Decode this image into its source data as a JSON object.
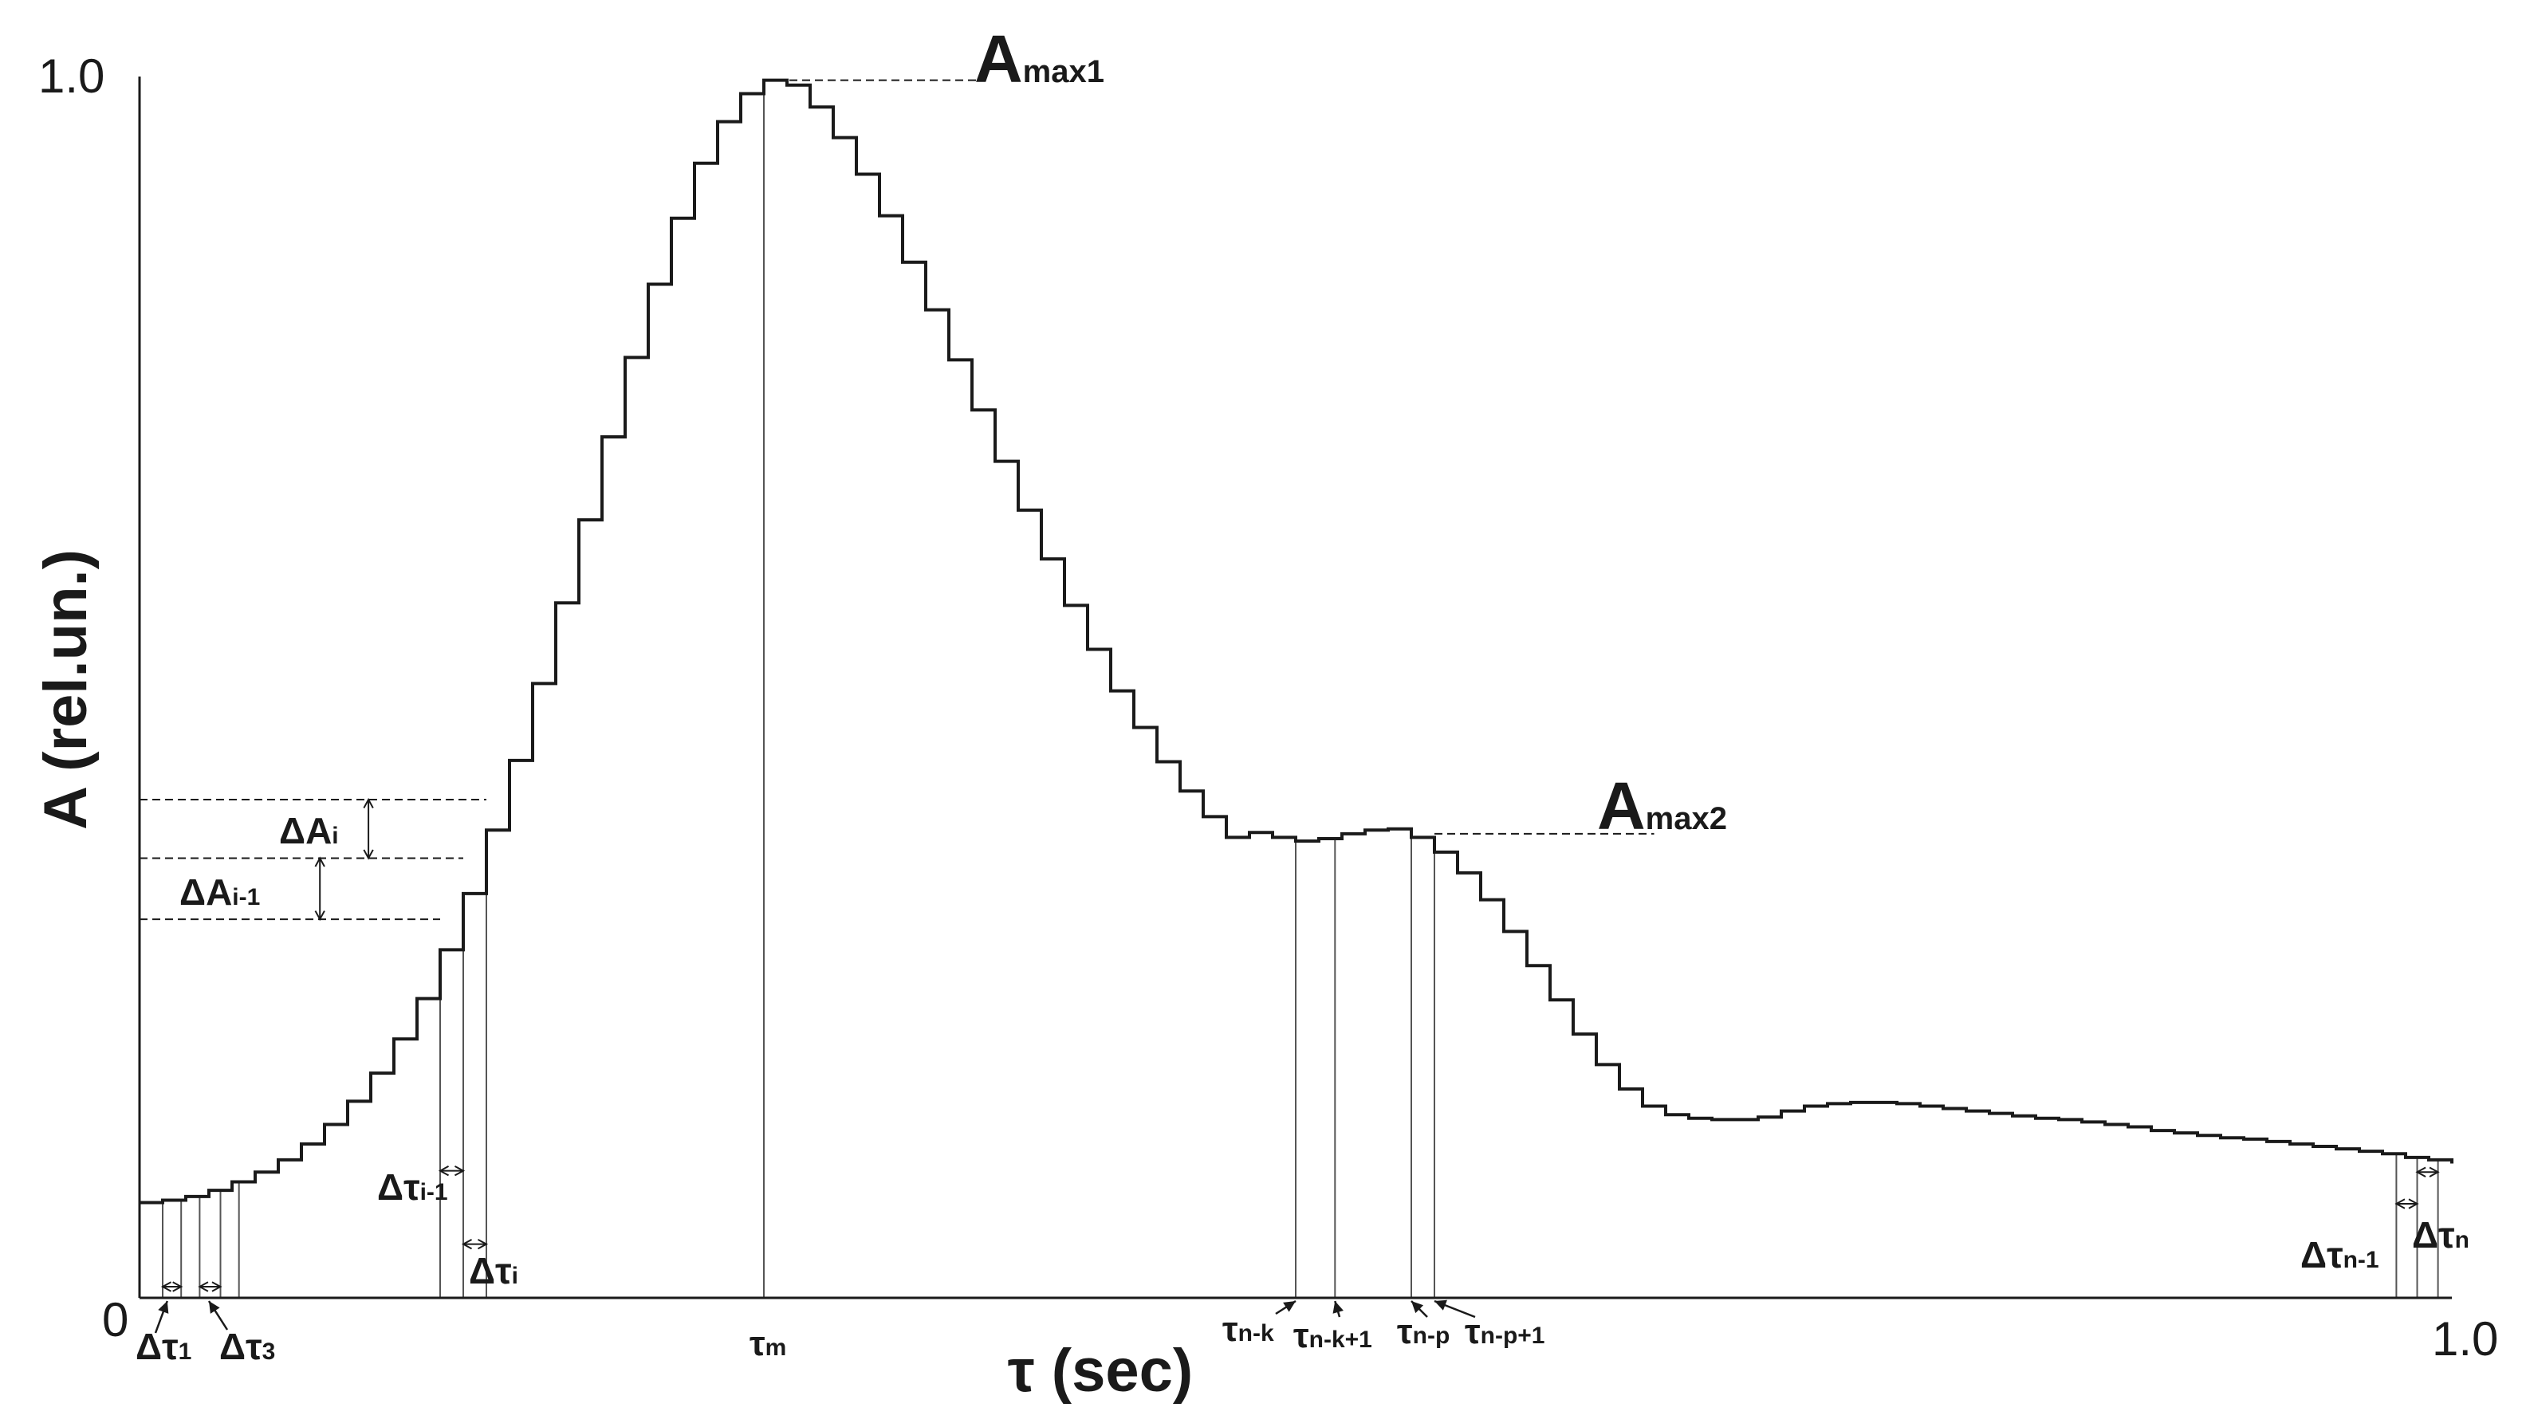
{
  "chart_data": {
    "type": "line",
    "step": true,
    "xlabel": "τ (sec)",
    "ylabel": "A (rel.un.)",
    "xlim": [
      0,
      1.0
    ],
    "ylim": [
      0,
      1.0
    ],
    "x_tick_labels": {
      "max": "1.0"
    },
    "y_tick_labels": {
      "min": "0",
      "max": "1.0"
    },
    "grid": false,
    "legend": "none",
    "colors": {
      "line": "#1a1a1a",
      "guide": "#555555"
    },
    "series": [
      {
        "x": [
          0.0,
          0.01,
          0.02,
          0.03,
          0.04,
          0.05,
          0.06,
          0.07,
          0.08,
          0.09,
          0.1,
          0.11,
          0.12,
          0.13,
          0.14,
          0.15,
          0.16,
          0.17,
          0.18,
          0.19,
          0.2,
          0.21,
          0.22,
          0.23,
          0.24,
          0.25,
          0.26,
          0.27,
          0.28,
          0.29,
          0.3,
          0.31,
          0.32,
          0.33,
          0.34,
          0.35,
          0.36,
          0.37,
          0.38,
          0.39,
          0.4,
          0.41,
          0.42,
          0.43,
          0.44,
          0.45,
          0.46,
          0.47,
          0.48,
          0.49,
          0.5,
          0.51,
          0.52,
          0.53,
          0.54,
          0.55,
          0.56,
          0.57,
          0.58,
          0.59,
          0.6,
          0.61,
          0.62,
          0.63,
          0.64,
          0.65,
          0.66,
          0.67,
          0.68,
          0.69,
          0.7,
          0.71,
          0.72,
          0.73,
          0.74,
          0.75,
          0.76,
          0.77,
          0.78,
          0.79,
          0.8,
          0.81,
          0.82,
          0.83,
          0.84,
          0.85,
          0.86,
          0.87,
          0.88,
          0.89,
          0.9,
          0.91,
          0.92,
          0.93,
          0.94,
          0.95,
          0.96,
          0.97,
          0.98,
          0.99,
          1.0
        ],
        "y": [
          0.078,
          0.08,
          0.083,
          0.088,
          0.095,
          0.103,
          0.113,
          0.126,
          0.142,
          0.161,
          0.184,
          0.212,
          0.245,
          0.285,
          0.331,
          0.383,
          0.44,
          0.503,
          0.569,
          0.637,
          0.705,
          0.77,
          0.83,
          0.884,
          0.929,
          0.963,
          0.986,
          0.997,
          0.993,
          0.975,
          0.95,
          0.92,
          0.886,
          0.848,
          0.809,
          0.768,
          0.727,
          0.685,
          0.645,
          0.605,
          0.567,
          0.531,
          0.497,
          0.467,
          0.439,
          0.415,
          0.394,
          0.377,
          0.381,
          0.377,
          0.374,
          0.376,
          0.38,
          0.383,
          0.384,
          0.377,
          0.365,
          0.348,
          0.326,
          0.3,
          0.272,
          0.244,
          0.216,
          0.191,
          0.171,
          0.157,
          0.15,
          0.147,
          0.146,
          0.146,
          0.148,
          0.153,
          0.157,
          0.159,
          0.16,
          0.16,
          0.159,
          0.157,
          0.155,
          0.153,
          0.151,
          0.149,
          0.147,
          0.146,
          0.144,
          0.142,
          0.14,
          0.137,
          0.135,
          0.133,
          0.131,
          0.13,
          0.128,
          0.126,
          0.124,
          0.122,
          0.12,
          0.118,
          0.115,
          0.113,
          0.11
        ]
      }
    ],
    "annotations": {
      "amax1": {
        "main": "A",
        "sub": "max1",
        "y": 0.997,
        "x_from": 0.27,
        "x_to": 0.366
      },
      "amax2": {
        "main": "A",
        "sub": "max2",
        "y": 0.38,
        "x_from": 0.56,
        "x_to": 0.655
      },
      "delta_a_i": {
        "main": "ΔA",
        "sub": "i",
        "y_top": 0.408,
        "y_bot": 0.36,
        "x_tip": 0.099
      },
      "delta_a_i1": {
        "main": "ΔA",
        "sub": "i-1",
        "y_top": 0.36,
        "y_bot": 0.31,
        "x_tip": 0.078
      },
      "delta_tau_1": {
        "main": "Δτ",
        "sub": "1",
        "x": 0.012
      },
      "delta_tau_3": {
        "main": "Δτ",
        "sub": "3",
        "x": 0.032
      },
      "delta_tau_i1": {
        "main": "Δτ",
        "sub": "i-1",
        "x": 0.135
      },
      "delta_tau_i": {
        "main": "Δτ",
        "sub": "i",
        "x": 0.145
      },
      "tau_m": {
        "main": "τ",
        "sub": "m",
        "x": 0.27
      },
      "tau_nk": {
        "main": "τ",
        "sub": "n-k",
        "x": 0.505
      },
      "tau_nk1": {
        "main": "τ",
        "sub": "n-k+1",
        "x": 0.523
      },
      "tau_np": {
        "main": "τ",
        "sub": "n-p",
        "x": 0.555
      },
      "tau_np1": {
        "main": "τ",
        "sub": "n-p+1",
        "x": 0.565
      },
      "delta_tau_n1": {
        "main": "Δτ",
        "sub": "n-1",
        "x": 0.98
      },
      "delta_tau_n": {
        "main": "Δτ",
        "sub": "n",
        "x": 0.989
      }
    }
  }
}
